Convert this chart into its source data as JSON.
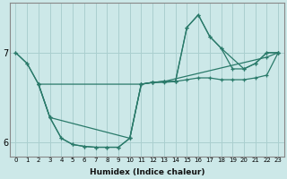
{
  "xlabel": "Humidex (Indice chaleur)",
  "xlim": [
    -0.5,
    23.5
  ],
  "ylim": [
    5.85,
    7.55
  ],
  "yticks": [
    6,
    7
  ],
  "bg_color": "#cce8e8",
  "line_color": "#2a7a6a",
  "grid_color": "#aacfcf",
  "lines": [
    {
      "x": [
        0,
        1,
        2,
        11,
        12,
        13,
        14,
        15,
        16,
        17,
        18,
        19,
        20,
        21,
        22,
        23
      ],
      "y": [
        7.0,
        6.88,
        6.65,
        6.65,
        6.67,
        6.67,
        6.68,
        6.7,
        6.72,
        6.72,
        6.7,
        6.7,
        6.7,
        6.72,
        6.75,
        7.0
      ]
    },
    {
      "x": [
        0,
        1,
        2,
        3,
        4,
        5,
        6,
        7,
        8,
        9,
        10,
        11,
        12,
        13,
        22,
        23
      ],
      "y": [
        7.0,
        6.88,
        6.65,
        6.28,
        6.05,
        5.98,
        5.96,
        5.95,
        5.95,
        5.95,
        6.05,
        6.65,
        6.67,
        6.68,
        6.95,
        7.0
      ]
    },
    {
      "x": [
        2,
        3,
        10,
        11,
        12,
        13,
        14,
        15,
        16,
        17,
        18,
        20,
        21,
        22,
        23
      ],
      "y": [
        6.65,
        6.28,
        6.05,
        6.65,
        6.67,
        6.68,
        6.68,
        7.28,
        7.42,
        7.18,
        7.05,
        6.82,
        6.88,
        7.0,
        7.0
      ]
    },
    {
      "x": [
        2,
        3,
        4,
        5,
        6,
        7,
        8,
        9,
        10,
        11,
        12,
        13,
        14,
        15,
        16,
        17,
        18,
        19,
        20,
        21,
        22,
        23
      ],
      "y": [
        6.65,
        6.28,
        6.05,
        5.98,
        5.96,
        5.95,
        5.95,
        5.95,
        6.05,
        6.65,
        6.67,
        6.68,
        6.68,
        7.28,
        7.42,
        7.18,
        7.05,
        6.82,
        6.82,
        6.88,
        7.0,
        7.0
      ]
    }
  ]
}
